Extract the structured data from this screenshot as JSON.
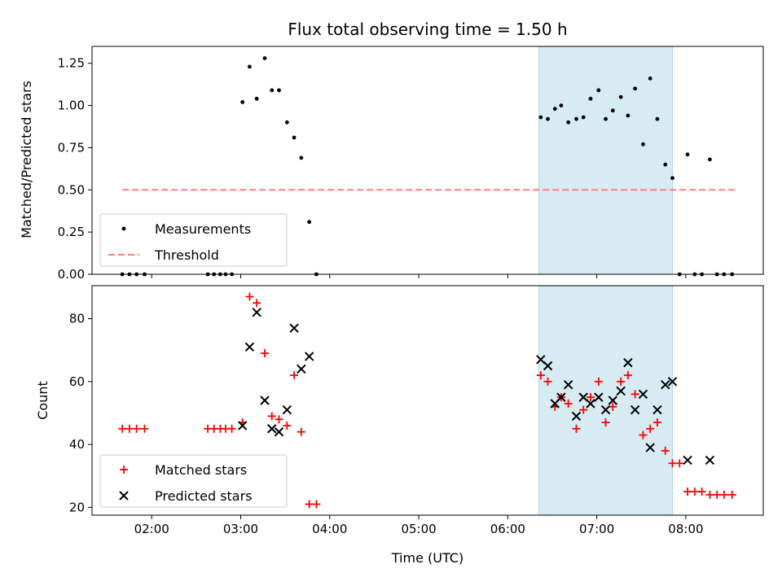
{
  "title": "Flux total observing time = 1.50 h",
  "xlabel": "Time (UTC)",
  "colors": {
    "span": "#add8e6",
    "measurement": "#000000",
    "threshold": "#ff7f7f",
    "matched": "#ff0000",
    "predicted": "#000000"
  },
  "chart_data": [
    {
      "type": "scatter",
      "ylabel": "Matched/Predicted stars",
      "ylim": [
        0,
        1.35
      ],
      "yticks": [
        0.0,
        0.25,
        0.5,
        0.75,
        1.0,
        1.25
      ],
      "ytick_labels": [
        "0.00",
        "0.25",
        "0.50",
        "0.75",
        "1.00",
        "1.25"
      ],
      "xlim_hours": [
        1.33,
        8.87
      ],
      "highlight_span_hours": [
        6.35,
        7.85
      ],
      "threshold": {
        "name": "Threshold",
        "y": 0.5,
        "x_range_hours": [
          1.67,
          8.55
        ]
      },
      "series": [
        {
          "name": "Measurements",
          "x_hours": [
            1.67,
            1.75,
            1.83,
            1.92,
            2.63,
            2.7,
            2.77,
            2.83,
            2.9,
            3.02,
            3.1,
            3.18,
            3.27,
            3.35,
            3.43,
            3.52,
            3.6,
            3.68,
            3.77,
            3.85,
            6.37,
            6.45,
            6.53,
            6.6,
            6.68,
            6.77,
            6.85,
            6.93,
            7.02,
            7.1,
            7.18,
            7.27,
            7.35,
            7.43,
            7.52,
            7.6,
            7.68,
            7.77,
            7.85,
            7.93,
            8.02,
            8.1,
            8.18,
            8.27,
            8.35,
            8.43,
            8.52
          ],
          "y": [
            0,
            0,
            0,
            0,
            0,
            0,
            0,
            0,
            0,
            1.02,
            1.23,
            1.04,
            1.28,
            1.09,
            1.09,
            0.9,
            0.81,
            0.69,
            0.31,
            0,
            0.93,
            0.92,
            0.98,
            1.0,
            0.9,
            0.92,
            0.93,
            1.04,
            1.09,
            0.92,
            0.97,
            1.05,
            0.94,
            1.1,
            0.77,
            1.16,
            0.92,
            0.65,
            0.57,
            0,
            0.71,
            0,
            0,
            0.68,
            0,
            0,
            0
          ]
        }
      ],
      "legend": [
        "Measurements",
        "Threshold"
      ],
      "legend_loc": "lower-left"
    },
    {
      "type": "scatter",
      "ylabel": "Count",
      "ylim": [
        17.5,
        90.5
      ],
      "yticks": [
        20,
        40,
        60,
        80
      ],
      "ytick_labels": [
        "20",
        "40",
        "60",
        "80"
      ],
      "xlim_hours": [
        1.33,
        8.87
      ],
      "xticks_hours": [
        2,
        3,
        4,
        5,
        6,
        7,
        8
      ],
      "xtick_labels": [
        "02:00",
        "03:00",
        "04:00",
        "05:00",
        "06:00",
        "07:00",
        "08:00"
      ],
      "highlight_span_hours": [
        6.35,
        7.85
      ],
      "series": [
        {
          "name": "Matched stars",
          "marker": "+",
          "x_hours": [
            1.67,
            1.75,
            1.83,
            1.92,
            2.63,
            2.7,
            2.77,
            2.83,
            2.9,
            3.02,
            3.1,
            3.18,
            3.27,
            3.35,
            3.43,
            3.52,
            3.6,
            3.68,
            3.77,
            3.85,
            6.37,
            6.45,
            6.53,
            6.6,
            6.68,
            6.77,
            6.85,
            6.93,
            7.02,
            7.1,
            7.18,
            7.27,
            7.35,
            7.43,
            7.52,
            7.6,
            7.68,
            7.77,
            7.85,
            7.93,
            8.02,
            8.1,
            8.18,
            8.27,
            8.35,
            8.43,
            8.52
          ],
          "y": [
            45,
            45,
            45,
            45,
            45,
            45,
            45,
            45,
            45,
            47,
            87,
            85,
            69,
            49,
            48,
            46,
            62,
            44,
            21,
            21,
            62,
            60,
            52,
            55,
            53,
            45,
            51,
            55,
            60,
            47,
            52,
            60,
            62,
            56,
            43,
            45,
            47,
            38,
            34,
            34,
            25,
            25,
            25,
            24,
            24,
            24,
            24
          ]
        },
        {
          "name": "Predicted stars",
          "marker": "x",
          "x_hours": [
            3.02,
            3.1,
            3.18,
            3.27,
            3.35,
            3.43,
            3.52,
            3.6,
            3.68,
            3.77,
            6.37,
            6.45,
            6.53,
            6.6,
            6.68,
            6.77,
            6.85,
            6.93,
            7.02,
            7.1,
            7.18,
            7.27,
            7.35,
            7.43,
            7.52,
            7.6,
            7.68,
            7.77,
            7.85,
            8.02,
            8.27
          ],
          "y": [
            46,
            71,
            82,
            54,
            45,
            44,
            51,
            77,
            64,
            68,
            67,
            65,
            53,
            55,
            59,
            49,
            55,
            53,
            55,
            51,
            54,
            57,
            66,
            51,
            56,
            39,
            51,
            59,
            60,
            35,
            35
          ]
        }
      ],
      "legend": [
        "Matched stars",
        "Predicted stars"
      ],
      "legend_loc": "lower-left"
    }
  ]
}
